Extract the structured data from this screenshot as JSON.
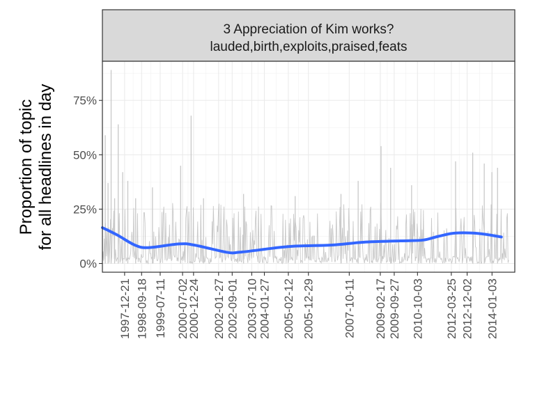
{
  "chart_data": {
    "type": "line",
    "facet_title": [
      "3 Appreciation of Kim works?",
      "lauded,birth,exploits,praised,feats"
    ],
    "ylabel": [
      "Proportion of topic",
      "for all headlines in day"
    ],
    "xlabel": "",
    "ylim": [
      -0.04,
      0.93
    ],
    "y_ticks": [
      0,
      0.25,
      0.5,
      0.75
    ],
    "y_tick_labels": [
      "0%",
      "25%",
      "50%",
      "75%"
    ],
    "x_tick_labels": [
      "1997-12-21",
      "1998-09-18",
      "1999-07-11",
      "2000-07-02",
      "2000-12-24",
      "2002-01-27",
      "2002-09-01",
      "2003-07-10",
      "2004-01-27",
      "2005-02-12",
      "2005-12-29",
      "2007-10-11",
      "2009-02-17",
      "2009-09-27",
      "2010-10-03",
      "2012-03-25",
      "2012-12-02",
      "2014-01-03"
    ],
    "x_range": [
      "1997-01-01",
      "2015-01-01"
    ],
    "grid": true,
    "series": [
      {
        "type": "raw",
        "color": "#c8c8c8",
        "spikes": [
          {
            "x": "1997-02-15",
            "y": 0.59
          },
          {
            "x": "1997-04-01",
            "y": 0.37
          },
          {
            "x": "1997-05-20",
            "y": 0.89
          },
          {
            "x": "1997-07-15",
            "y": 0.3
          },
          {
            "x": "1997-09-10",
            "y": 0.64
          },
          {
            "x": "1997-11-20",
            "y": 0.42
          },
          {
            "x": "1998-02-10",
            "y": 0.38
          },
          {
            "x": "1998-06-15",
            "y": 0.3
          },
          {
            "x": "1999-03-10",
            "y": 0.35
          },
          {
            "x": "2000-06-01",
            "y": 0.45
          },
          {
            "x": "2000-11-15",
            "y": 0.68
          },
          {
            "x": "2001-06-01",
            "y": 0.3
          },
          {
            "x": "2003-03-01",
            "y": 0.32
          },
          {
            "x": "2005-06-01",
            "y": 0.31
          },
          {
            "x": "2007-06-01",
            "y": 0.32
          },
          {
            "x": "2008-03-01",
            "y": 0.38
          },
          {
            "x": "2009-03-01",
            "y": 0.54
          },
          {
            "x": "2009-08-01",
            "y": 0.44
          },
          {
            "x": "2010-07-01",
            "y": 0.36
          },
          {
            "x": "2012-06-01",
            "y": 0.47
          },
          {
            "x": "2013-03-01",
            "y": 0.51
          },
          {
            "x": "2013-09-01",
            "y": 0.46
          },
          {
            "x": "2014-01-01",
            "y": 0.42
          },
          {
            "x": "2014-04-01",
            "y": 0.44
          }
        ]
      },
      {
        "type": "smooth",
        "color": "#3366ff",
        "points": [
          {
            "x": "1997-01-01",
            "y": 0.165
          },
          {
            "x": "1997-09-01",
            "y": 0.13
          },
          {
            "x": "1998-06-01",
            "y": 0.085
          },
          {
            "x": "1999-01-01",
            "y": 0.073
          },
          {
            "x": "2000-05-01",
            "y": 0.09
          },
          {
            "x": "2001-01-01",
            "y": 0.085
          },
          {
            "x": "2002-06-01",
            "y": 0.052
          },
          {
            "x": "2003-01-01",
            "y": 0.052
          },
          {
            "x": "2004-07-01",
            "y": 0.071
          },
          {
            "x": "2005-06-01",
            "y": 0.08
          },
          {
            "x": "2007-01-01",
            "y": 0.085
          },
          {
            "x": "2008-06-01",
            "y": 0.098
          },
          {
            "x": "2010-01-01",
            "y": 0.104
          },
          {
            "x": "2011-01-01",
            "y": 0.108
          },
          {
            "x": "2011-09-01",
            "y": 0.125
          },
          {
            "x": "2012-06-01",
            "y": 0.14
          },
          {
            "x": "2013-06-01",
            "y": 0.138
          },
          {
            "x": "2014-06-01",
            "y": 0.122
          }
        ]
      }
    ]
  }
}
